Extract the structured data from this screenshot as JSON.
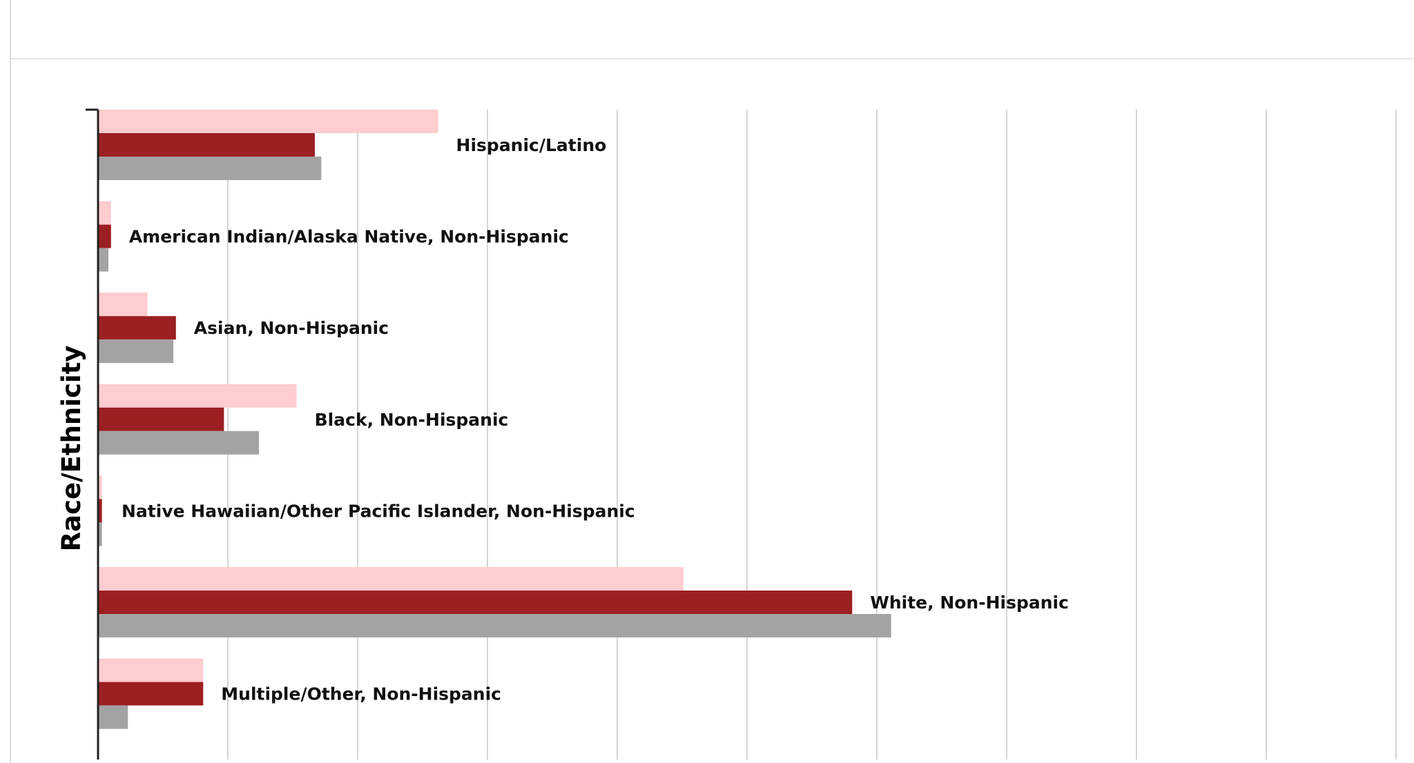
{
  "chart_data": {
    "type": "bar",
    "orientation": "horizontal",
    "title": "",
    "xlabel": "",
    "ylabel": "Race/Ethnicity",
    "categories": [
      "Hispanic/Latino",
      "American Indian/Alaska Native, Non-Hispanic",
      "Asian, Non-Hispanic",
      "Black, Non-Hispanic",
      "Native Hawaiian/Other Pacific Islander, Non-Hispanic",
      "White, Non-Hispanic",
      "Multiple/Other, Non-Hispanic"
    ],
    "series": [
      {
        "color": "#ffcccf",
        "values": [
          26.2,
          1.0,
          3.8,
          15.3,
          0.3,
          45.1,
          8.1
        ]
      },
      {
        "color": "#9c1f22",
        "values": [
          16.7,
          1.0,
          6.0,
          9.7,
          0.3,
          58.1,
          8.1
        ]
      },
      {
        "color": "#a3a3a3",
        "values": [
          17.2,
          0.8,
          5.8,
          12.4,
          0.3,
          61.1,
          2.3
        ]
      }
    ],
    "xlim": [
      0,
      100
    ],
    "grid": true
  }
}
